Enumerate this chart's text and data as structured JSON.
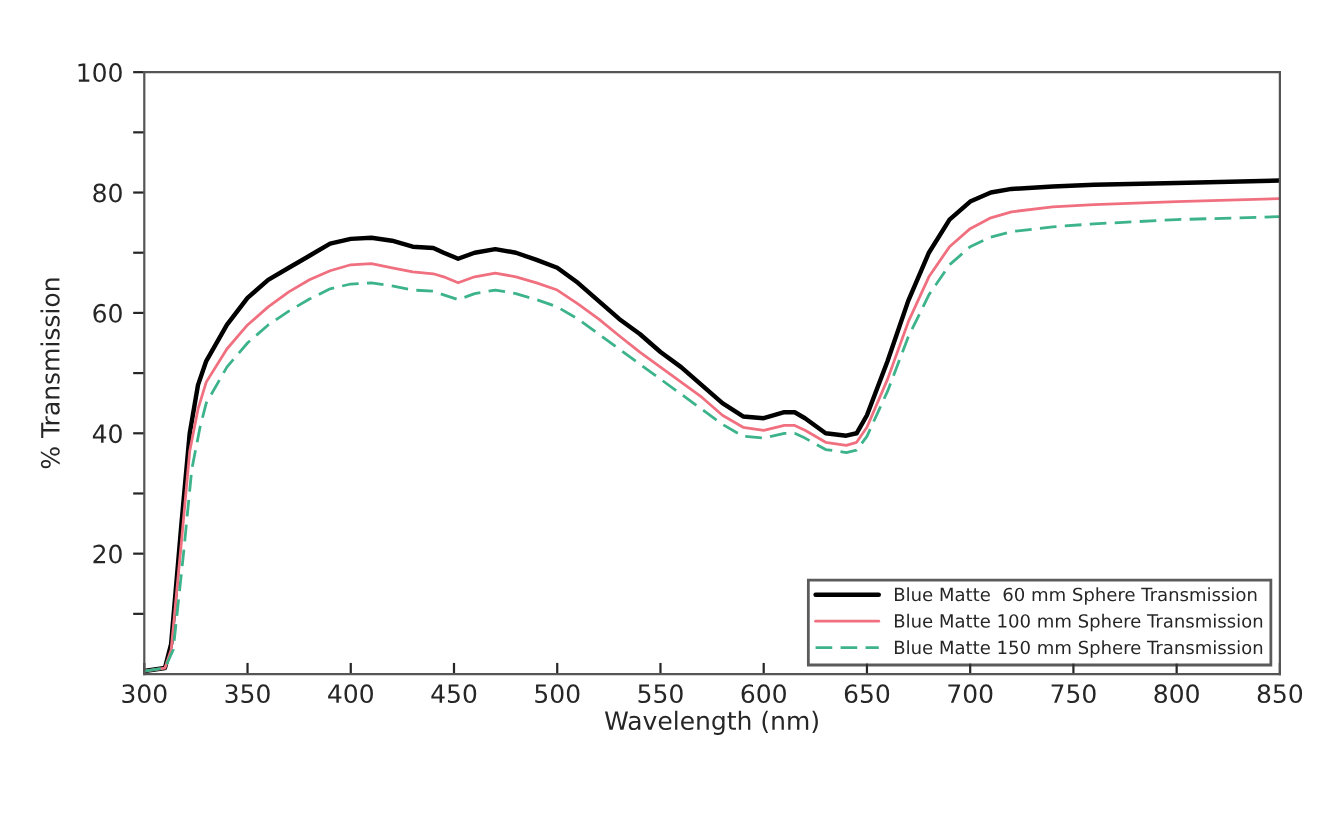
{
  "chart_data": {
    "type": "line",
    "xlabel": "Wavelength (nm)",
    "ylabel": "% Transmission",
    "xlim": [
      300,
      850
    ],
    "ylim": [
      0,
      100
    ],
    "xticks": [
      300,
      350,
      400,
      450,
      500,
      550,
      600,
      650,
      700,
      750,
      800,
      850
    ],
    "yticks": [
      {
        "value": 10,
        "label": null
      },
      20,
      {
        "value": 30,
        "label": null
      },
      40,
      {
        "value": 50,
        "label": null
      },
      60,
      {
        "value": 70,
        "label": null
      },
      80,
      {
        "value": 90,
        "label": null
      },
      100
    ],
    "grid": false,
    "legend": "bottom right",
    "marker": "none",
    "series": [
      {
        "name": "Blue Matte  60 mm Sphere Transmission",
        "color": "#000000",
        "line_style": "solid",
        "x": [
          300,
          310,
          313,
          318,
          322,
          326,
          330,
          340,
          350,
          360,
          370,
          380,
          390,
          400,
          410,
          420,
          430,
          440,
          445,
          452,
          460,
          470,
          480,
          490,
          500,
          510,
          520,
          530,
          540,
          550,
          560,
          570,
          580,
          590,
          600,
          610,
          615,
          620,
          630,
          640,
          645,
          650,
          660,
          670,
          680,
          690,
          700,
          710,
          720,
          740,
          760,
          800,
          850
        ],
        "values": [
          0.5,
          1,
          5,
          25,
          40,
          48,
          52,
          58,
          62.5,
          65.5,
          67.5,
          69.5,
          71.5,
          72.3,
          72.5,
          72,
          71,
          70.8,
          70,
          69,
          70,
          70.6,
          70,
          68.8,
          67.5,
          65,
          62,
          59,
          56.5,
          53.5,
          51,
          48,
          45,
          42.8,
          42.5,
          43.5,
          43.5,
          42.5,
          40,
          39.6,
          40,
          43,
          52,
          62,
          70,
          75.5,
          78.5,
          80,
          80.6,
          81,
          81.3,
          81.6,
          82
        ]
      },
      {
        "name": "Blue Matte 100 mm Sphere Transmission",
        "color": "#f07080",
        "line_style": "solid",
        "x": [
          300,
          310,
          313,
          318,
          322,
          326,
          330,
          340,
          350,
          360,
          370,
          380,
          390,
          400,
          410,
          420,
          430,
          440,
          445,
          452,
          460,
          470,
          480,
          490,
          500,
          510,
          520,
          530,
          540,
          550,
          560,
          570,
          580,
          590,
          600,
          610,
          615,
          620,
          630,
          640,
          645,
          650,
          660,
          670,
          680,
          690,
          700,
          710,
          720,
          740,
          760,
          800,
          850
        ],
        "values": [
          0.5,
          1,
          4,
          22,
          37,
          44,
          48.5,
          54,
          58,
          61,
          63.5,
          65.5,
          67,
          68,
          68.2,
          67.5,
          66.8,
          66.5,
          66,
          65,
          66,
          66.6,
          66,
          65,
          63.8,
          61.5,
          59,
          56.2,
          53.5,
          51,
          48.5,
          46,
          43,
          41,
          40.5,
          41.3,
          41.3,
          40.5,
          38.5,
          38,
          38.5,
          41,
          49,
          58.5,
          66,
          71,
          74,
          75.8,
          76.8,
          77.6,
          78,
          78.5,
          79
        ]
      },
      {
        "name": "Blue Matte 150 mm Sphere Transmission",
        "color": "#3cb38a",
        "line_style": "dashed",
        "x": [
          300,
          310,
          314,
          319,
          323,
          327,
          330,
          340,
          350,
          360,
          370,
          380,
          390,
          400,
          410,
          420,
          430,
          440,
          445,
          452,
          460,
          470,
          480,
          490,
          500,
          510,
          520,
          530,
          540,
          550,
          560,
          570,
          580,
          590,
          600,
          610,
          615,
          620,
          630,
          640,
          645,
          650,
          660,
          670,
          680,
          690,
          700,
          710,
          720,
          740,
          760,
          800,
          850
        ],
        "values": [
          0.5,
          1,
          4,
          20,
          34,
          41,
          45,
          51,
          55,
          58,
          60.3,
          62.3,
          64,
          64.8,
          65,
          64.5,
          63.8,
          63.6,
          63,
          62.2,
          63.2,
          63.8,
          63.2,
          62.2,
          61,
          59,
          56.5,
          54,
          51.5,
          49,
          46.5,
          44,
          41.5,
          39.5,
          39.2,
          40,
          40,
          39.2,
          37.3,
          36.8,
          37.2,
          39.5,
          47,
          56,
          63,
          68,
          71,
          72.6,
          73.5,
          74.3,
          74.8,
          75.5,
          76
        ]
      }
    ]
  }
}
